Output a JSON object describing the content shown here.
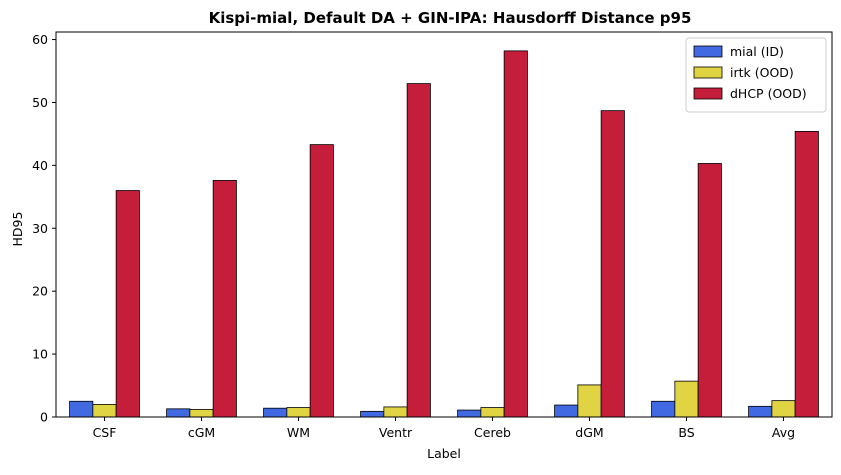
{
  "chart_data": {
    "type": "bar",
    "title": "Kispi-mial, Default DA + GIN-IPA: Hausdorff Distance p95",
    "xlabel": "Label",
    "ylabel": "HD95",
    "ylim": [
      0,
      61.2
    ],
    "yticks": [
      0,
      10,
      20,
      30,
      40,
      50,
      60
    ],
    "categories": [
      "CSF",
      "cGM",
      "WM",
      "Ventr",
      "Cereb",
      "dGM",
      "BS",
      "Avg"
    ],
    "series": [
      {
        "name": "mial (ID)",
        "color": "#4169e1",
        "values": [
          2.5,
          1.3,
          1.4,
          0.9,
          1.1,
          1.9,
          2.5,
          1.7
        ]
      },
      {
        "name": "irtk (OOD)",
        "color": "#e0d442",
        "values": [
          2.0,
          1.2,
          1.5,
          1.6,
          1.5,
          5.1,
          5.7,
          2.6
        ]
      },
      {
        "name": "dHCP (OOD)",
        "color": "#c41e3a",
        "values": [
          36.0,
          37.6,
          43.3,
          53.0,
          58.2,
          48.7,
          40.3,
          45.4
        ]
      }
    ],
    "legend_position": "top-right",
    "grid": false
  }
}
